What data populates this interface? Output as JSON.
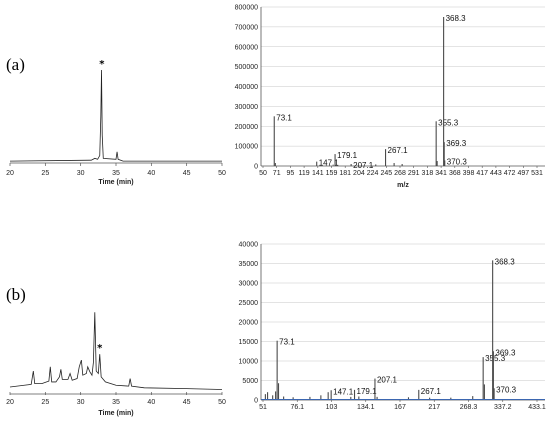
{
  "panels": [
    {
      "label": "(a)",
      "chromatogram": {
        "type": "line",
        "xlabel": "Time (min)",
        "xlim": [
          20,
          50
        ],
        "x_ticks": [
          "20",
          "25",
          "30",
          "35",
          "40",
          "45",
          "50"
        ],
        "star_label": "*",
        "star_at_x": 33,
        "points": [
          [
            20,
            0.02
          ],
          [
            31.5,
            0.03
          ],
          [
            32.0,
            0.05
          ],
          [
            32.4,
            0.04
          ],
          [
            32.7,
            0.08
          ],
          [
            32.85,
            0.5
          ],
          [
            32.95,
            1.0
          ],
          [
            33.05,
            0.3
          ],
          [
            33.2,
            0.05
          ],
          [
            35.0,
            0.04
          ],
          [
            35.15,
            0.12
          ],
          [
            35.3,
            0.04
          ],
          [
            36,
            0.02
          ],
          [
            50,
            0.02
          ]
        ]
      },
      "spectrum": {
        "type": "bar",
        "xlabel": "m/z",
        "xlim": [
          50,
          545
        ],
        "ylim": [
          0,
          800000
        ],
        "y_ticks": [
          "0",
          "100000",
          "200000",
          "300000",
          "400000",
          "500000",
          "600000",
          "700000",
          "800000"
        ],
        "x_ticks": [
          "50",
          "71",
          "95",
          "119",
          "141",
          "159",
          "181",
          "204",
          "224",
          "245",
          "268",
          "291",
          "318",
          "341",
          "368",
          "398",
          "417",
          "443",
          "472",
          "497",
          "531"
        ],
        "peaks": [
          {
            "mz": 73.1,
            "y": 250000,
            "label": "73.1"
          },
          {
            "mz": 75,
            "y": 15000
          },
          {
            "mz": 147.1,
            "y": 22000,
            "label": "147.1"
          },
          {
            "mz": 179.1,
            "y": 60000,
            "label": "179.1"
          },
          {
            "mz": 207.1,
            "y": 10000,
            "label": "207.1"
          },
          {
            "mz": 250,
            "y": 8000
          },
          {
            "mz": 267.1,
            "y": 85000,
            "label": "267.1"
          },
          {
            "mz": 282,
            "y": 15000
          },
          {
            "mz": 296,
            "y": 10000
          },
          {
            "mz": 355.3,
            "y": 225000,
            "label": "355.3"
          },
          {
            "mz": 357,
            "y": 25000
          },
          {
            "mz": 368.3,
            "y": 750000,
            "label": "368.3"
          },
          {
            "mz": 369.3,
            "y": 120000,
            "label": "369.3"
          },
          {
            "mz": 370.3,
            "y": 28000,
            "label": "370.3"
          }
        ]
      }
    },
    {
      "label": "(b)",
      "chromatogram": {
        "type": "line",
        "xlabel": "Time (min)",
        "xlim": [
          20,
          50
        ],
        "x_ticks": [
          "20",
          "25",
          "30",
          "35",
          "40",
          "45",
          "50"
        ],
        "star_label": "*",
        "star_at_x": 32.7,
        "points": [
          [
            20,
            0.06
          ],
          [
            21,
            0.07
          ],
          [
            22,
            0.08
          ],
          [
            23,
            0.09
          ],
          [
            23.3,
            0.25
          ],
          [
            23.5,
            0.1
          ],
          [
            24.5,
            0.1
          ],
          [
            25.5,
            0.13
          ],
          [
            25.7,
            0.3
          ],
          [
            25.9,
            0.12
          ],
          [
            26.5,
            0.12
          ],
          [
            27.0,
            0.18
          ],
          [
            27.2,
            0.27
          ],
          [
            27.4,
            0.15
          ],
          [
            28.2,
            0.15
          ],
          [
            28.5,
            0.22
          ],
          [
            28.8,
            0.14
          ],
          [
            29.5,
            0.16
          ],
          [
            29.8,
            0.3
          ],
          [
            30.1,
            0.38
          ],
          [
            30.3,
            0.2
          ],
          [
            30.8,
            0.22
          ],
          [
            31.0,
            0.3
          ],
          [
            31.3,
            0.24
          ],
          [
            31.6,
            0.2
          ],
          [
            31.8,
            0.35
          ],
          [
            32.0,
            0.95
          ],
          [
            32.2,
            0.25
          ],
          [
            32.5,
            0.22
          ],
          [
            32.7,
            0.45
          ],
          [
            32.9,
            0.18
          ],
          [
            33.5,
            0.12
          ],
          [
            35,
            0.08
          ],
          [
            36.8,
            0.07
          ],
          [
            37.0,
            0.16
          ],
          [
            37.2,
            0.07
          ],
          [
            39,
            0.05
          ],
          [
            45,
            0.04
          ],
          [
            50,
            0.03
          ]
        ]
      },
      "spectrum": {
        "type": "bar",
        "xlabel": "m/z",
        "xlim": [
          51,
          440
        ],
        "ylim": [
          0,
          40000
        ],
        "y_ticks": [
          "0",
          "5000",
          "10000",
          "15000",
          "20000",
          "25000",
          "30000",
          "35000",
          "40000"
        ],
        "x_ticks": [
          "51",
          "76.1",
          "103",
          "134.1",
          "167",
          "217",
          "268.3",
          "337.2",
          "433.1"
        ],
        "peaks": [
          {
            "mz": 57,
            "y": 1500
          },
          {
            "mz": 60,
            "y": 2000
          },
          {
            "mz": 67,
            "y": 1200
          },
          {
            "mz": 71,
            "y": 2200
          },
          {
            "mz": 73.1,
            "y": 15200,
            "label": "73.1"
          },
          {
            "mz": 75,
            "y": 4300
          },
          {
            "mz": 82,
            "y": 900
          },
          {
            "mz": 95,
            "y": 700
          },
          {
            "mz": 118,
            "y": 800
          },
          {
            "mz": 133,
            "y": 1200
          },
          {
            "mz": 143,
            "y": 2000
          },
          {
            "mz": 147.1,
            "y": 2500,
            "label": "147.1"
          },
          {
            "mz": 174,
            "y": 800
          },
          {
            "mz": 179.1,
            "y": 2600,
            "label": "179.1"
          },
          {
            "mz": 185,
            "y": 900
          },
          {
            "mz": 207.1,
            "y": 5500,
            "label": "207.1"
          },
          {
            "mz": 210,
            "y": 800
          },
          {
            "mz": 253,
            "y": 700
          },
          {
            "mz": 267.1,
            "y": 2600,
            "label": "267.1"
          },
          {
            "mz": 282,
            "y": 600
          },
          {
            "mz": 311,
            "y": 600
          },
          {
            "mz": 341,
            "y": 1000
          },
          {
            "mz": 355.3,
            "y": 11000,
            "label": "355.3"
          },
          {
            "mz": 357,
            "y": 4000
          },
          {
            "mz": 368.3,
            "y": 35800,
            "label": "368.3"
          },
          {
            "mz": 369.3,
            "y": 12500,
            "label": "369.3"
          },
          {
            "mz": 370.3,
            "y": 3000,
            "label": "370.3"
          }
        ]
      }
    }
  ],
  "colors": {
    "axis": "#555555",
    "trace": "#222222",
    "grid": "#c8c8c8",
    "spectrum_line": "#4a4a4a",
    "baseline_b": "#3b66b0"
  }
}
